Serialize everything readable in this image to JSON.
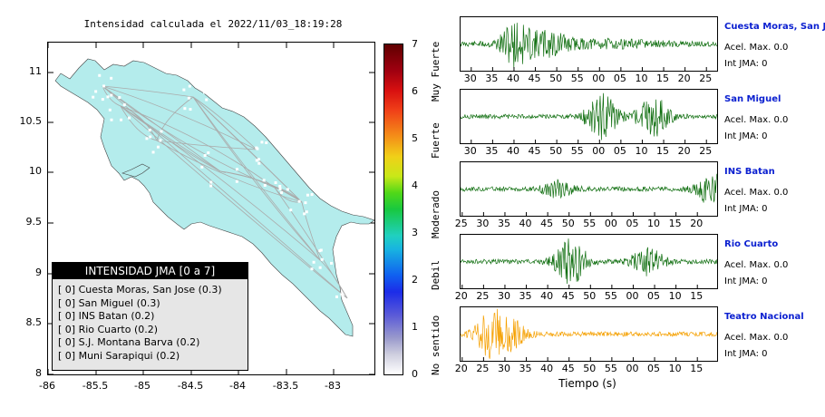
{
  "map": {
    "title": "Intensidad calculada el 2022/11/03_18:19:28",
    "lat_ticks": [
      "11",
      "10.5",
      "10",
      "9.5",
      "9",
      "8.5",
      "8"
    ],
    "lon_ticks": [
      "-86",
      "-85.5",
      "-85",
      "-84.5",
      "-84",
      "-83.5",
      "-83"
    ],
    "land_color": "#b4ecec",
    "road_color": "#aaaaaa"
  },
  "legend": {
    "title": "INTENSIDAD JMA [0 a 7]",
    "items": [
      "[ 0]  Cuesta Moras, San Jose (0.3)",
      "[ 0]  San Miguel (0.3)",
      "[ 0]  INS Batan (0.2)",
      "[ 0]  Rio Cuarto (0.2)",
      "[ 0]  S.J. Montana Barva (0.2)",
      "[ 0]  Muni Sarapiqui (0.2)"
    ]
  },
  "colorbar": {
    "ticks": [
      "7",
      "6",
      "5",
      "4",
      "3",
      "2",
      "1",
      "0"
    ],
    "labels": [
      "Muy Fuerte",
      "Fuerte",
      "Moderado",
      "Debil",
      "No sentido"
    ]
  },
  "stations": [
    {
      "name": "Cuesta Moras, San Jose",
      "acel": "Acel. Max. 0.0",
      "int": "Int JMA: 0",
      "ticks": [
        "30",
        "35",
        "40",
        "45",
        "50",
        "55",
        "00",
        "05",
        "10",
        "15",
        "20",
        "25"
      ],
      "color": "#0f6e0f"
    },
    {
      "name": "San Miguel",
      "acel": "Acel. Max. 0.0",
      "int": "Int JMA: 0",
      "ticks": [
        "30",
        "35",
        "40",
        "45",
        "50",
        "55",
        "00",
        "05",
        "10",
        "15",
        "20",
        "25"
      ],
      "color": "#0f6e0f"
    },
    {
      "name": "INS Batan",
      "acel": "Acel. Max. 0.0",
      "int": "Int JMA: 0",
      "ticks": [
        "25",
        "30",
        "35",
        "40",
        "45",
        "50",
        "55",
        "00",
        "05",
        "10",
        "15",
        "20"
      ],
      "color": "#0f6e0f"
    },
    {
      "name": "Rio Cuarto",
      "acel": "Acel. Max. 0.0",
      "int": "Int JMA: 0",
      "ticks": [
        "20",
        "25",
        "30",
        "35",
        "40",
        "45",
        "50",
        "55",
        "00",
        "05",
        "10",
        "15"
      ],
      "color": "#0f6e0f"
    },
    {
      "name": "Teatro Nacional",
      "acel": "Acel. Max. 0.0",
      "int": "Int JMA: 0",
      "ticks": [
        "20",
        "25",
        "30",
        "35",
        "40",
        "45",
        "50",
        "55",
        "00",
        "05",
        "10",
        "15"
      ],
      "color": "#f5a000"
    }
  ],
  "xaxis_label": "Tiempo (s)"
}
